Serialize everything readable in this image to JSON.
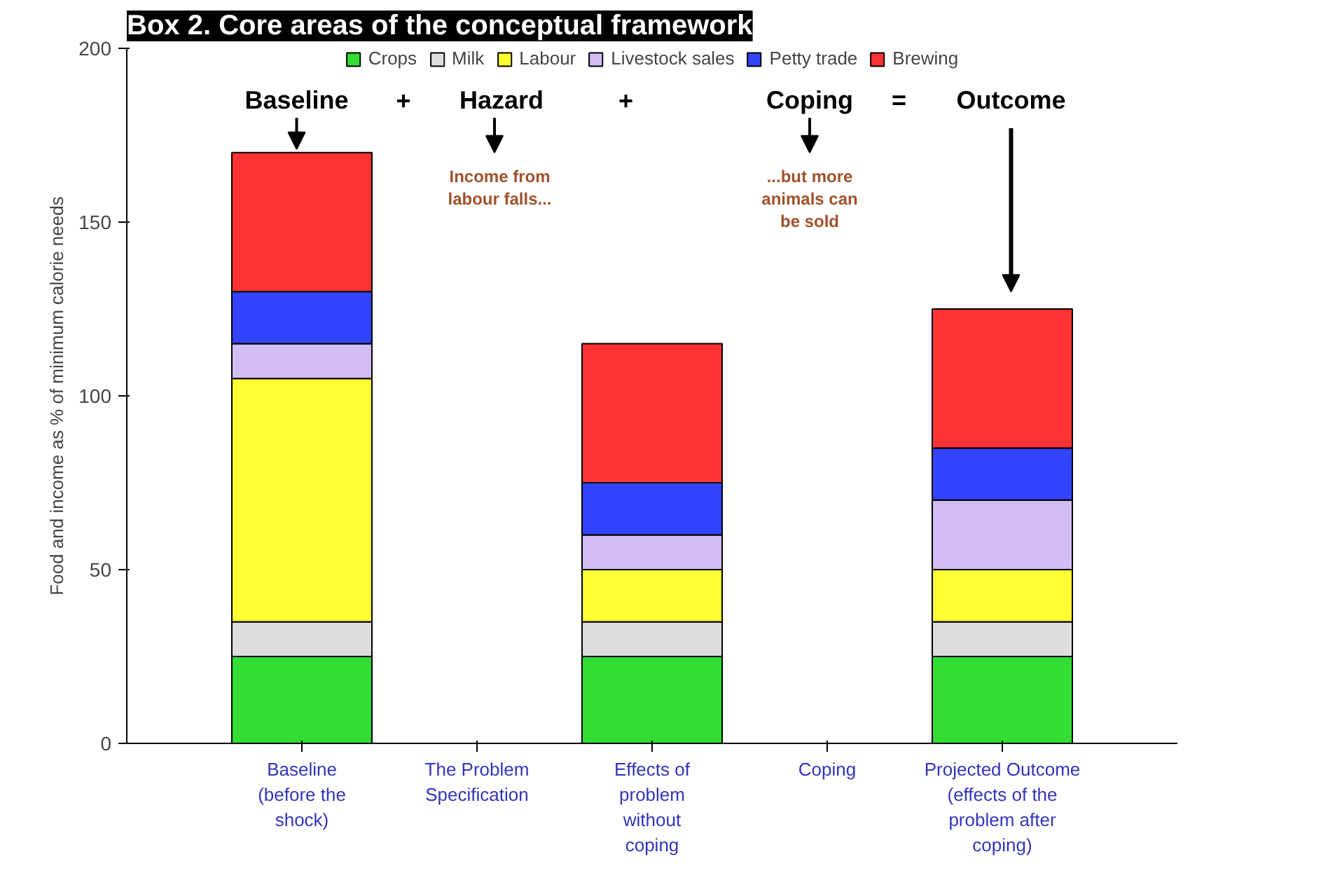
{
  "chart_data": {
    "type": "bar",
    "stacked": true,
    "title": "Box 2. Core areas of the conceptual framework",
    "ylabel": "Food and income as % of minimum calorie needs",
    "categories": [
      "Baseline\n(before the\nshock)",
      "The Problem\nSpecification",
      "Effects of\nproblem\nwithout\ncoping",
      "Coping",
      "Projected Outcome\n(effects of the\nproblem after\ncoping)"
    ],
    "series": [
      {
        "name": "Crops",
        "color": "#33dd33",
        "values": [
          25,
          null,
          25,
          null,
          25
        ]
      },
      {
        "name": "Milk",
        "color": "#dddddd",
        "values": [
          10,
          null,
          10,
          null,
          10
        ]
      },
      {
        "name": "Labour",
        "color": "#ffff33",
        "values": [
          70,
          null,
          15,
          null,
          15
        ]
      },
      {
        "name": "Livestock sales",
        "color": "#d2bdf5",
        "values": [
          10,
          null,
          10,
          null,
          20
        ]
      },
      {
        "name": "Petty trade",
        "color": "#3344ff",
        "values": [
          15,
          null,
          15,
          null,
          15
        ]
      },
      {
        "name": "Brewing",
        "color": "#ff3333",
        "values": [
          40,
          null,
          40,
          null,
          40
        ]
      }
    ],
    "ylim": [
      0,
      200
    ],
    "yticks": [
      0,
      50,
      100,
      150,
      200
    ],
    "grid": false,
    "legend": "top",
    "annotations": [
      "Baseline",
      "+",
      "Hazard",
      "+",
      "Coping",
      "=",
      "Outcome",
      "Income from\nlabour falls...",
      "...but more\nanimals can\nbe sold"
    ]
  }
}
